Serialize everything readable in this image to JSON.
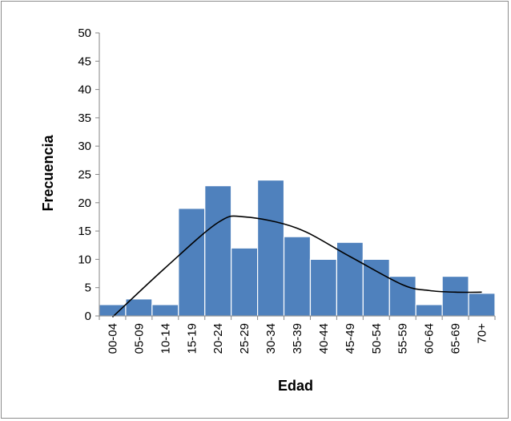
{
  "chart_data": {
    "type": "bar",
    "title": "",
    "xlabel": "Edad",
    "ylabel": "Frecuencia",
    "categories": [
      "00-04",
      "05-09",
      "10-14",
      "15-19",
      "20-24",
      "25-29",
      "30-34",
      "35-39",
      "40-44",
      "45-49",
      "50-54",
      "55-59",
      "60-64",
      "65-69",
      "70+"
    ],
    "values": [
      2,
      3,
      2,
      19,
      23,
      12,
      24,
      14,
      10,
      13,
      10,
      7,
      2,
      7,
      4
    ],
    "ylim": [
      0,
      50
    ],
    "yticks": [
      0,
      5,
      10,
      15,
      20,
      25,
      30,
      35,
      40,
      45,
      50
    ],
    "grid": false,
    "legend": "none",
    "trendline": {
      "type": "polynomial",
      "points": [
        {
          "x": "00-04",
          "y": -0.2
        },
        {
          "x": "10-14",
          "y": 8.5
        },
        {
          "x": "20-24",
          "y": 16.5
        },
        {
          "x": "25-29",
          "y": 17.5
        },
        {
          "x": "35-39",
          "y": 15.5
        },
        {
          "x": "45-49",
          "y": 10.5
        },
        {
          "x": "55-59",
          "y": 5.5
        },
        {
          "x": "60-64",
          "y": 4.5
        },
        {
          "x": "65-69",
          "y": 4.2
        },
        {
          "x": "70+",
          "y": 4.2
        }
      ],
      "color": "#000000"
    },
    "colors": {
      "bar": "#4f81bd",
      "bar_border": "#ffffff",
      "axis": "#868686"
    }
  }
}
